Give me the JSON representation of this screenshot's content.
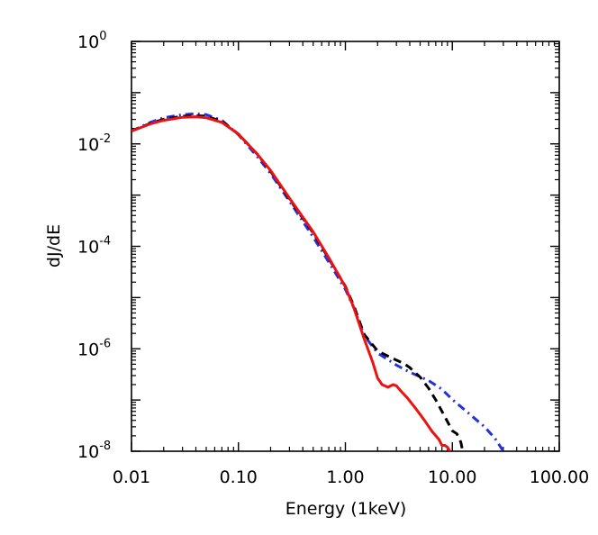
{
  "chart_data": {
    "type": "line",
    "title": "",
    "xlabel": "Energy (1keV)",
    "ylabel": "dJ/dE",
    "xscale": "log",
    "yscale": "log",
    "xlim": [
      0.01,
      100
    ],
    "ylim": [
      1e-08,
      1
    ],
    "grid": false,
    "legend": "none",
    "x_ticks": [
      {
        "value": 0.01,
        "label": "0.01"
      },
      {
        "value": 0.1,
        "label": "0.10"
      },
      {
        "value": 1,
        "label": "1.00"
      },
      {
        "value": 10,
        "label": "10.00"
      },
      {
        "value": 100,
        "label": "100.00"
      }
    ],
    "y_ticks": [
      {
        "value": 1,
        "base": "10",
        "exp": "0"
      },
      {
        "value": 0.01,
        "base": "10",
        "exp": "-2"
      },
      {
        "value": 0.0001,
        "base": "10",
        "exp": "-4"
      },
      {
        "value": 1e-06,
        "base": "10",
        "exp": "-6"
      },
      {
        "value": 1e-08,
        "base": "10",
        "exp": "-8"
      }
    ],
    "series": [
      {
        "color": "#2233dd",
        "style": "dashdot",
        "x": [
          0.01,
          0.015,
          0.02,
          0.03,
          0.04,
          0.05,
          0.07,
          0.1,
          0.15,
          0.2,
          0.3,
          0.5,
          0.7,
          1.0,
          1.2,
          1.5,
          2.0,
          3.0,
          4.0,
          6.0,
          8.0,
          10.0,
          15.0,
          20.0,
          25.0,
          30.0
        ],
        "y": [
          0.0178,
          0.0263,
          0.0324,
          0.0372,
          0.0389,
          0.0372,
          0.0288,
          0.0151,
          0.00562,
          0.00263,
          0.00076,
          0.000151,
          4.9e-05,
          1.45e-05,
          6.3e-06,
          1.82e-06,
          8.3e-07,
          4.8e-07,
          3.5e-07,
          2.4e-07,
          1.62e-07,
          1.02e-07,
          5e-08,
          3e-08,
          1.8e-08,
          1e-08
        ]
      },
      {
        "color": "#000000",
        "style": "dashed",
        "x": [
          0.01,
          0.015,
          0.02,
          0.03,
          0.04,
          0.05,
          0.07,
          0.1,
          0.15,
          0.2,
          0.3,
          0.5,
          0.7,
          1.0,
          1.2,
          1.5,
          2.0,
          2.5,
          3.0,
          3.5,
          4.0,
          5.0,
          6.0,
          7.0,
          8.0,
          9.0,
          10.0,
          11.0,
          12.0,
          12.5
        ],
        "y": [
          0.0178,
          0.0251,
          0.0302,
          0.0347,
          0.0355,
          0.0347,
          0.0275,
          0.0155,
          0.0063,
          0.0029,
          0.000832,
          0.000182,
          5.75e-05,
          1.66e-05,
          6.9e-06,
          1.91e-06,
          9.1e-07,
          7.2e-07,
          6e-07,
          5.2e-07,
          4.3e-07,
          2.8e-07,
          1.7e-07,
          1e-07,
          6e-08,
          3.8e-08,
          2.5e-08,
          2.2e-08,
          1.5e-08,
          1e-08
        ]
      },
      {
        "color": "#ee1111",
        "style": "solid",
        "x": [
          0.01,
          0.015,
          0.02,
          0.03,
          0.04,
          0.05,
          0.07,
          0.1,
          0.15,
          0.2,
          0.3,
          0.5,
          0.7,
          1.0,
          1.2,
          1.5,
          1.8,
          2.0,
          2.2,
          2.5,
          2.8,
          3.0,
          3.3,
          3.8,
          4.5,
          5.5,
          6.5,
          7.5,
          8.0,
          8.5,
          9.0,
          9.5
        ],
        "y": [
          0.0178,
          0.0245,
          0.0288,
          0.0331,
          0.0339,
          0.0324,
          0.0263,
          0.0155,
          0.0063,
          0.00302,
          0.000871,
          0.000191,
          6e-05,
          1.62e-05,
          6.3e-06,
          1.55e-06,
          5.5e-07,
          2.7e-07,
          2e-07,
          1.78e-07,
          2e-07,
          1.9e-07,
          1.5e-07,
          1.1e-07,
          7e-08,
          4e-08,
          2.4e-08,
          1.7e-08,
          1.3e-08,
          1.3e-08,
          1.2e-08,
          1e-08
        ]
      }
    ]
  }
}
